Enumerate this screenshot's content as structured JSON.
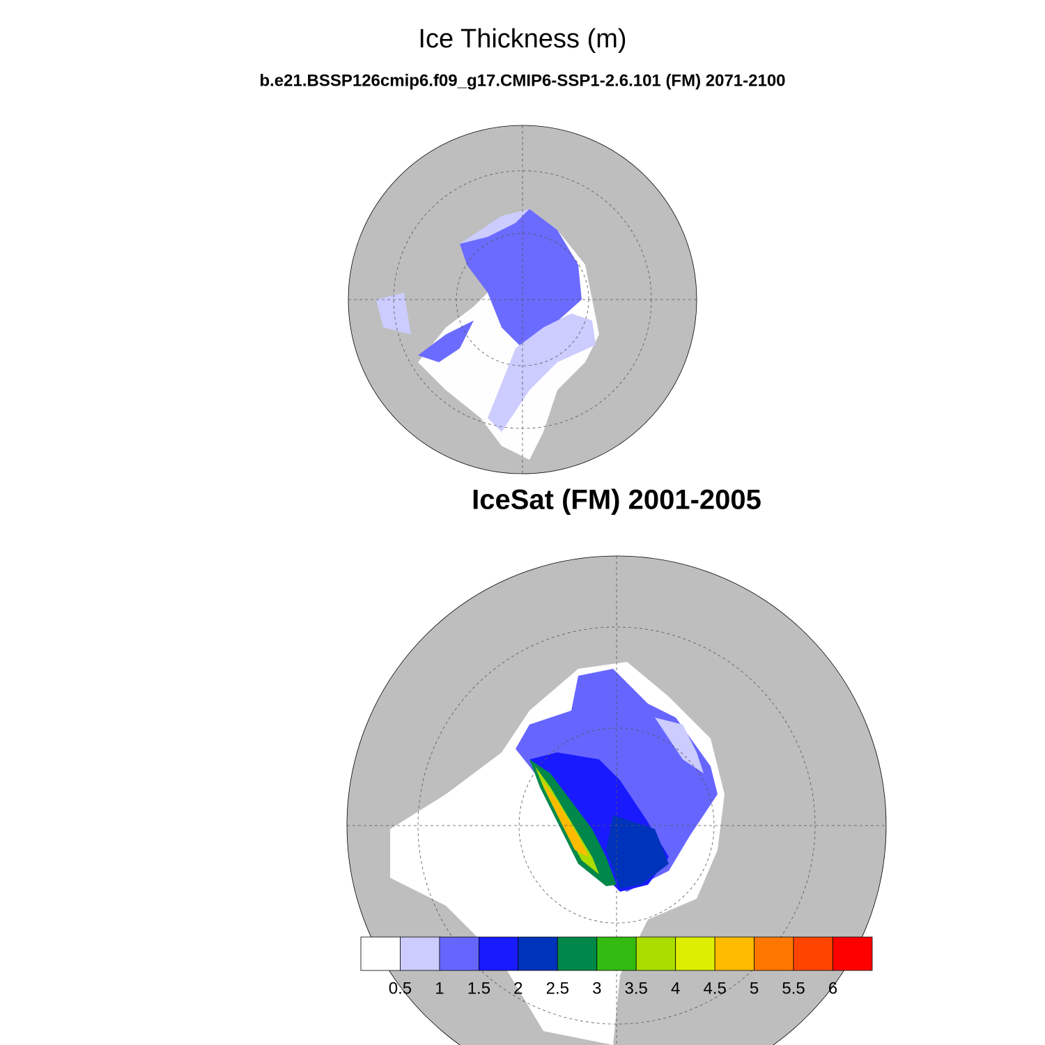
{
  "title": "Ice Thickness (m)",
  "subtitle": "b.e21.BSSP126cmip6.f09_g17.CMIP6-SSP1-2.6.101 (FM) 2071-2100",
  "panel_title": "IceSat (FM) 2001-2005",
  "colorbar": {
    "colors": [
      "#ffffff",
      "#ccccff",
      "#6666ff",
      "#1a1aff",
      "#0033bb",
      "#00884a",
      "#33bb11",
      "#aadd00",
      "#ddee00",
      "#ffbb00",
      "#ff7700",
      "#ff4400",
      "#ff0000"
    ],
    "labels": [
      0.5,
      1,
      1.5,
      2,
      2.5,
      3,
      3.5,
      4,
      4.5,
      5,
      5.5,
      6
    ]
  }
}
